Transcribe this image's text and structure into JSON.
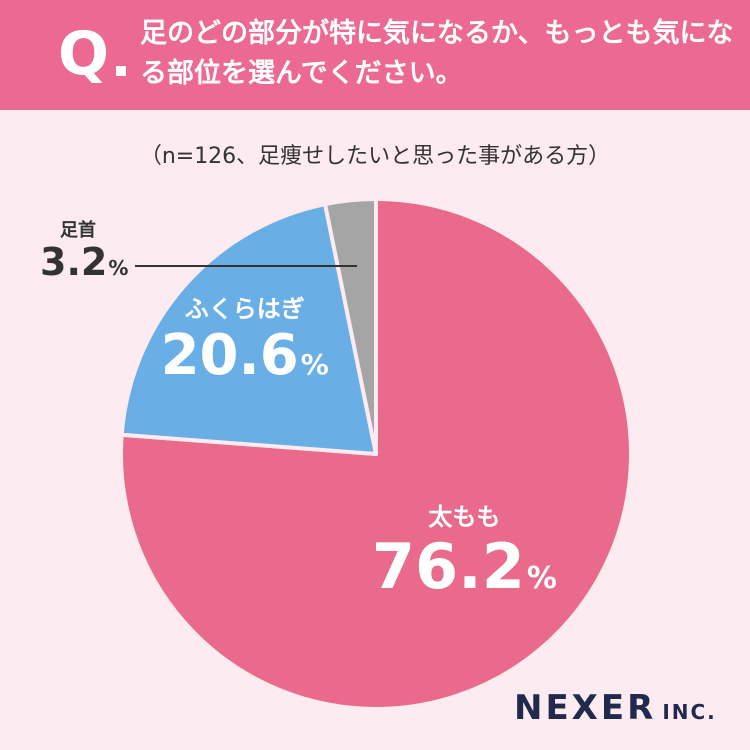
{
  "header": {
    "q_mark": "Q",
    "question": "足のどの部分が特に気になるか、もっとも気になる部位を選んでください。"
  },
  "subtitle": "（n=126、足痩せしたいと思った事がある方）",
  "chart_data": {
    "type": "pie",
    "title": "足のどの部分が特に気になるか、もっとも気になる部位を選んでください。",
    "start": "12 o'clock",
    "direction": "clockwise",
    "slices": [
      {
        "label": "太もも",
        "value": 76.2,
        "unit": "%",
        "color": "#e96a8a"
      },
      {
        "label": "ふくらはぎ",
        "value": 20.6,
        "unit": "%",
        "color": "#6aaee6"
      },
      {
        "label": "足首",
        "value": 3.2,
        "unit": "%",
        "color": "#a5a5a5"
      }
    ]
  },
  "logo": {
    "name": "NEXER",
    "suffix": "INC."
  }
}
